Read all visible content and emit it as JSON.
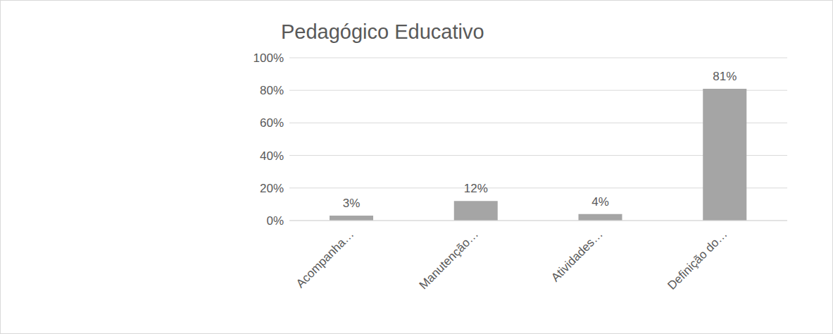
{
  "chart_data": {
    "type": "bar",
    "title": "Pedagógico Educativo",
    "categories": [
      "Acompanha…",
      "Manutenção…",
      "Atividades…",
      "Definição do…"
    ],
    "values": [
      3,
      12,
      4,
      81
    ],
    "value_labels": [
      "3%",
      "12%",
      "4%",
      "81%"
    ],
    "color": "#a5a5a5",
    "ylim": [
      0,
      100
    ],
    "yticks": [
      {
        "value": 0,
        "label": "0%"
      },
      {
        "value": 20,
        "label": "20%"
      },
      {
        "value": 40,
        "label": "40%"
      },
      {
        "value": 60,
        "label": "60%"
      },
      {
        "value": 80,
        "label": "80%"
      },
      {
        "value": 100,
        "label": "100%"
      }
    ],
    "grid": true,
    "data_labels": true
  }
}
